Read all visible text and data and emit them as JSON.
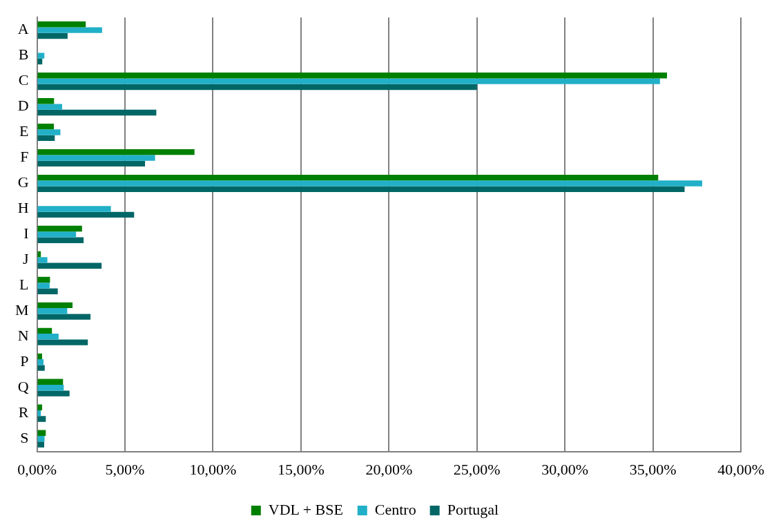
{
  "chart_data": {
    "type": "bar",
    "orientation": "horizontal",
    "categories": [
      "A",
      "B",
      "C",
      "D",
      "E",
      "F",
      "G",
      "H",
      "I",
      "J",
      "L",
      "M",
      "N",
      "P",
      "Q",
      "R",
      "S"
    ],
    "series": [
      {
        "name": "VDL + BSE",
        "color": "#008000",
        "values": [
          2.77,
          0,
          35.8,
          0.97,
          0.96,
          8.95,
          35.3,
          0,
          2.56,
          0.22,
          0.74,
          2.02,
          0.85,
          0.29,
          1.48,
          0.29,
          0.5
        ]
      },
      {
        "name": "Centro",
        "color": "#21b0c8",
        "values": [
          3.7,
          0.42,
          35.4,
          1.43,
          1.33,
          6.71,
          37.8,
          4.2,
          2.22,
          0.59,
          0.72,
          1.72,
          1.23,
          0.37,
          1.52,
          0.22,
          0.43
        ]
      },
      {
        "name": "Portugal",
        "color": "#006666",
        "values": [
          1.74,
          0.3,
          25.0,
          6.78,
          1.01,
          6.14,
          36.8,
          5.52,
          2.65,
          3.67,
          1.18,
          3.04,
          2.89,
          0.44,
          1.85,
          0.5,
          0.41
        ]
      }
    ],
    "xlim": [
      0,
      40
    ],
    "xticks": [
      {
        "value": 0,
        "label": "0,00%"
      },
      {
        "value": 5,
        "label": "5,00%"
      },
      {
        "value": 10,
        "label": "10,00%"
      },
      {
        "value": 15,
        "label": "15,00%"
      },
      {
        "value": 20,
        "label": "20,00%"
      },
      {
        "value": 25,
        "label": "25,00%"
      },
      {
        "value": 30,
        "label": "30,00%"
      },
      {
        "value": 35,
        "label": "35,00%"
      },
      {
        "value": 40,
        "label": "40,00%"
      }
    ],
    "grid": "x",
    "legend": "bottom"
  }
}
